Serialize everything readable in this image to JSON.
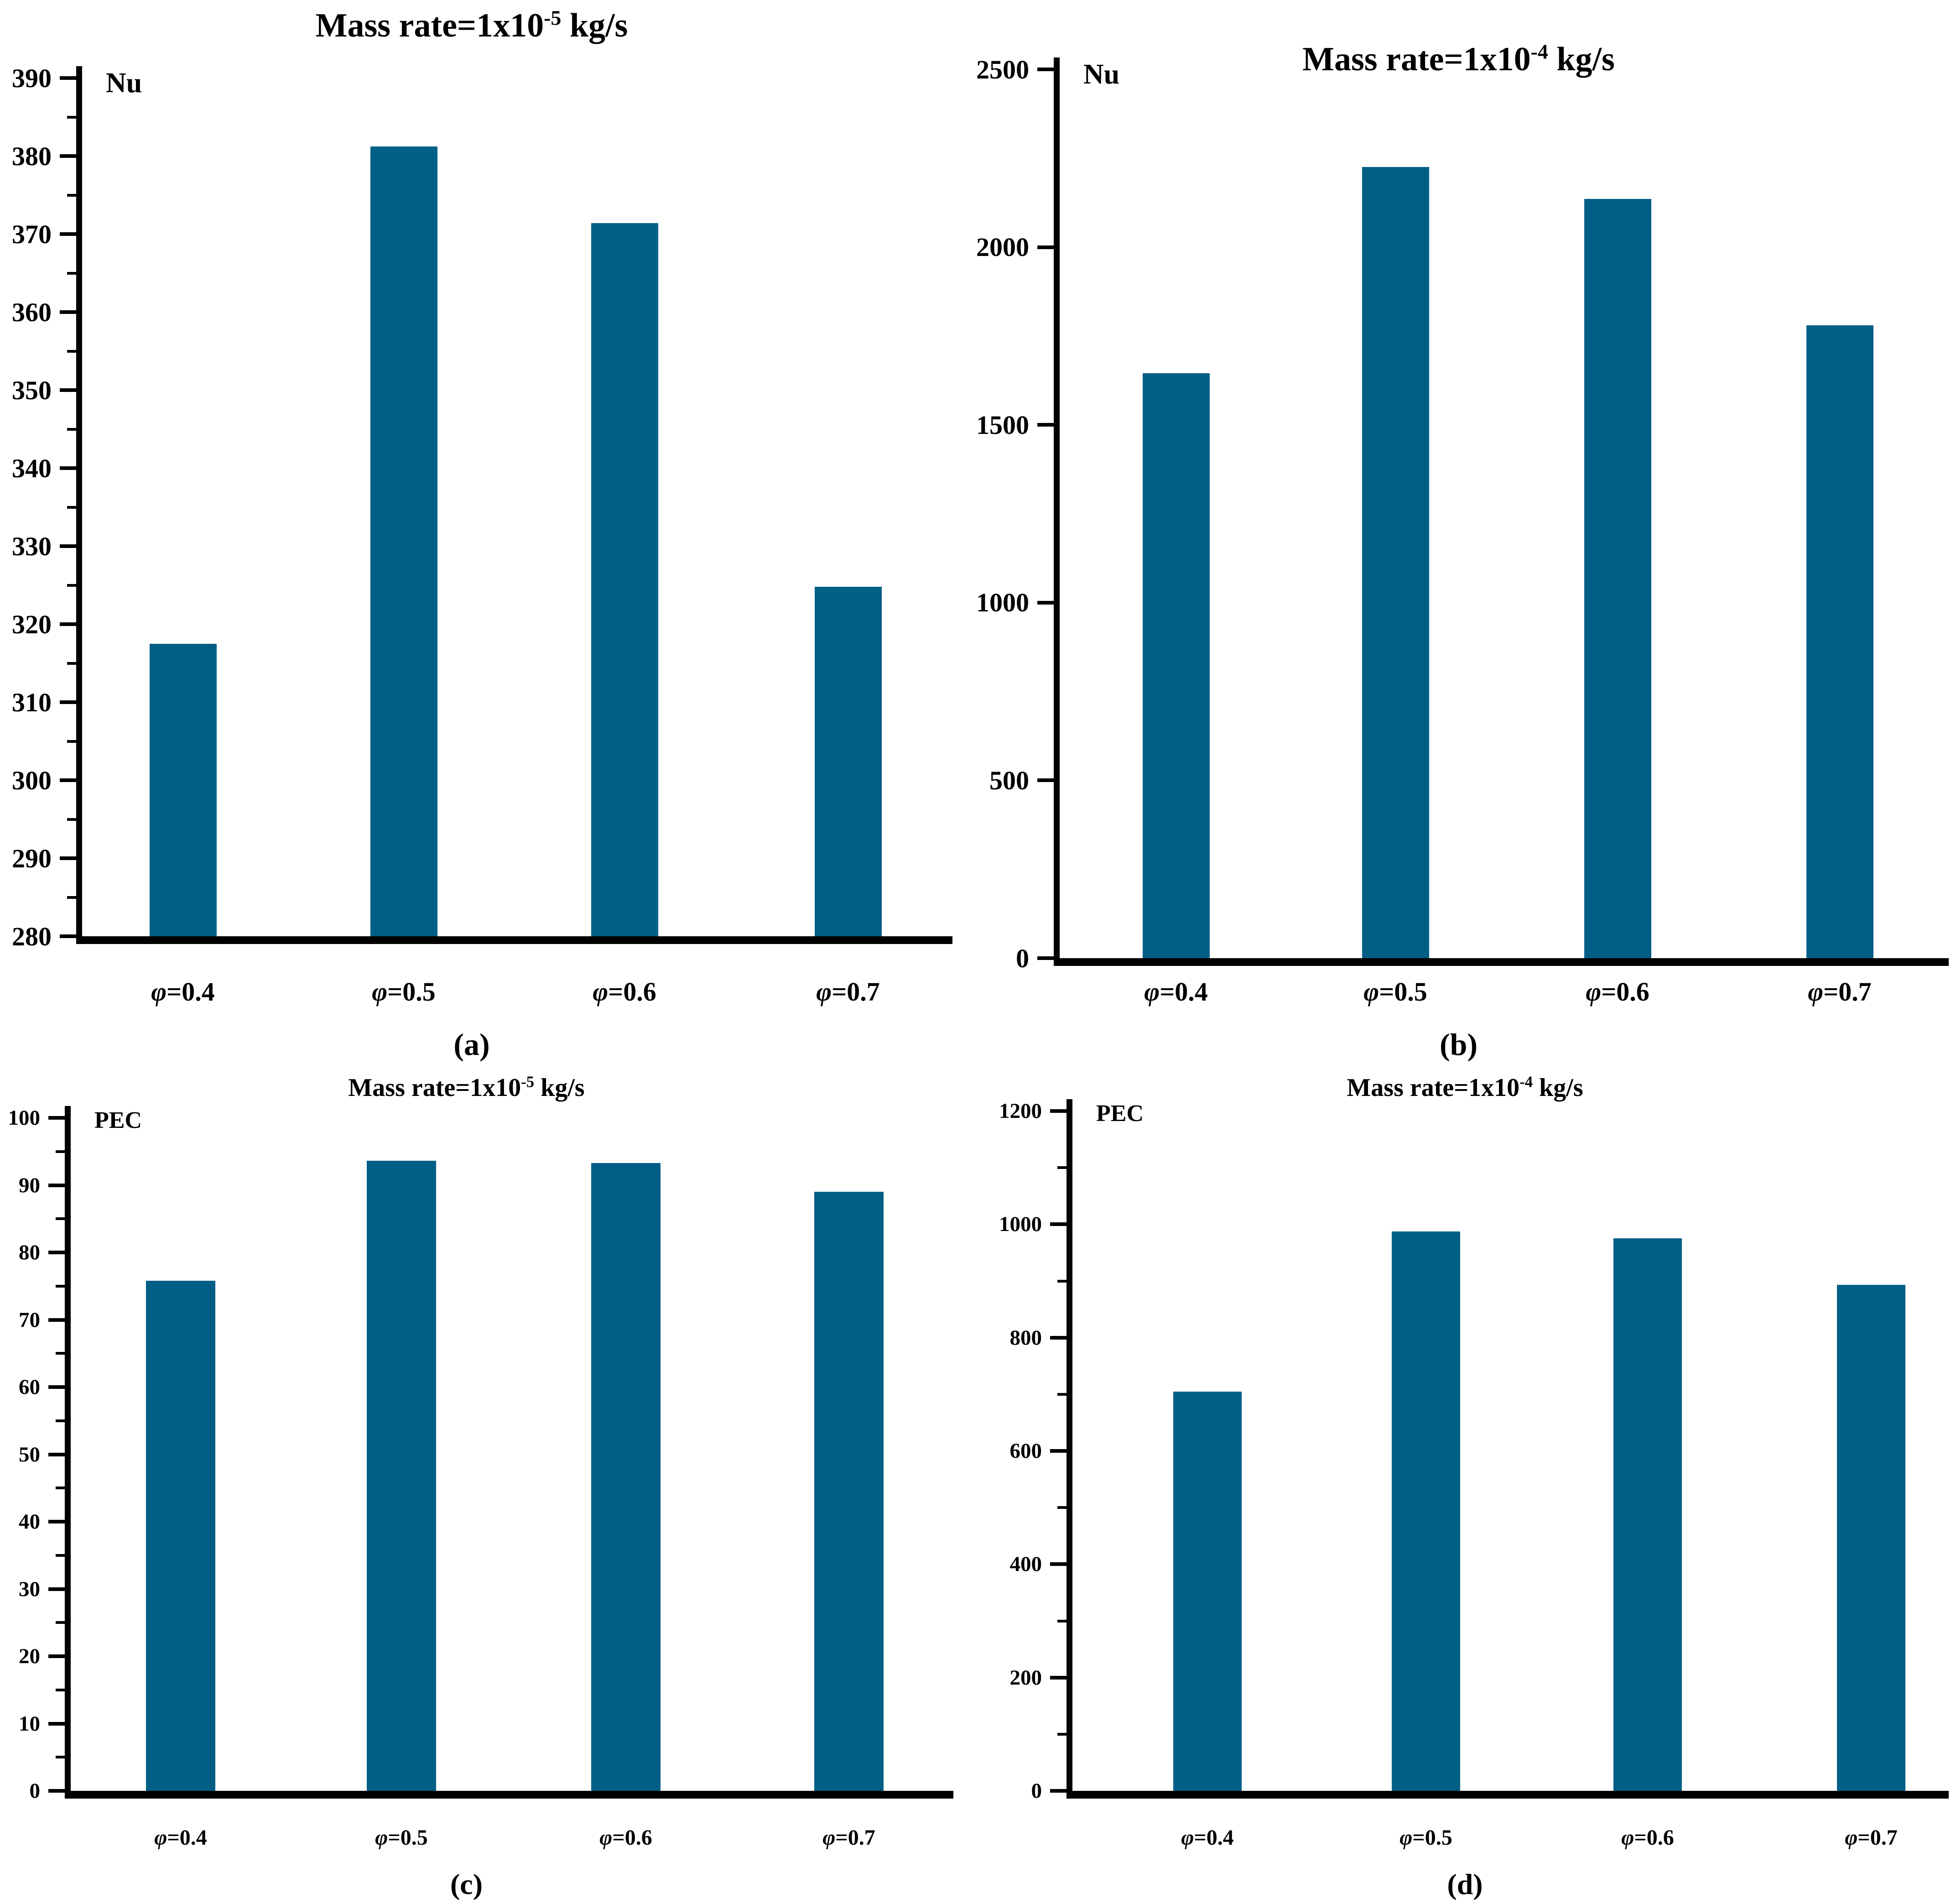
{
  "figure": {
    "background": "#ffffff",
    "bar_color": "#015f86",
    "axis_color": "#000000"
  },
  "chart_data": [
    {
      "type": "bar",
      "panel": "(a)",
      "title": "Mass rate=1x10-5 kg/s",
      "title_prefix": "Mass rate=1x10",
      "title_exponent": "-5",
      "title_suffix": " kg/s",
      "ylabel": "Nu",
      "xlabel": "",
      "categories": [
        "φ=0.4",
        "φ=0.5",
        "φ=0.6",
        "φ=0.7"
      ],
      "values": [
        317.5,
        381.2,
        371.4,
        324.8
      ],
      "ylim": [
        280,
        390
      ],
      "y_step": 10,
      "minor_tick_step": 5,
      "y_ticks": [
        280,
        290,
        300,
        310,
        320,
        330,
        340,
        350,
        360,
        370,
        380,
        390
      ],
      "grid": "off",
      "legend": "none"
    },
    {
      "type": "bar",
      "panel": "(b)",
      "title": "Mass rate=1x10-4 kg/s",
      "title_prefix": "Mass rate=1x10",
      "title_exponent": "-4",
      "title_suffix": " kg/s",
      "ylabel": "Nu",
      "xlabel": "",
      "categories": [
        "φ=0.4",
        "φ=0.5",
        "φ=0.6",
        "φ=0.7"
      ],
      "values": [
        1645,
        2225,
        2135,
        1780
      ],
      "ylim": [
        0,
        2500
      ],
      "y_step": 500,
      "minor_tick_step": null,
      "y_ticks": [
        0,
        500,
        1000,
        1500,
        2000,
        2500
      ],
      "grid": "off",
      "legend": "none"
    },
    {
      "type": "bar",
      "panel": "(c)",
      "title": "Mass rate=1x10-5 kg/s",
      "title_prefix": "Mass rate=1x10",
      "title_exponent": "-5",
      "title_suffix": " kg/s",
      "ylabel": "PEC",
      "xlabel": "",
      "categories": [
        "φ=0.4",
        "φ=0.5",
        "φ=0.6",
        "φ=0.7"
      ],
      "values": [
        75.8,
        93.6,
        93.3,
        89.0
      ],
      "ylim": [
        0,
        100
      ],
      "y_step": 10,
      "minor_tick_step": 5,
      "y_ticks": [
        0,
        10,
        20,
        30,
        40,
        50,
        60,
        70,
        80,
        90,
        100
      ],
      "grid": "off",
      "legend": "none"
    },
    {
      "type": "bar",
      "panel": "(d)",
      "title": "Mass rate=1x10-4 kg/s",
      "title_prefix": "Mass rate=1x10",
      "title_exponent": "-4",
      "title_suffix": " kg/s",
      "ylabel": "PEC",
      "xlabel": "",
      "categories": [
        "φ=0.4",
        "φ=0.5",
        "φ=0.6",
        "φ=0.7"
      ],
      "values": [
        705,
        987,
        975,
        893
      ],
      "ylim": [
        0,
        1200
      ],
      "y_step": 200,
      "minor_tick_step": 100,
      "y_ticks": [
        0,
        200,
        400,
        600,
        800,
        1000,
        1200
      ],
      "grid": "off",
      "legend": "none"
    }
  ]
}
